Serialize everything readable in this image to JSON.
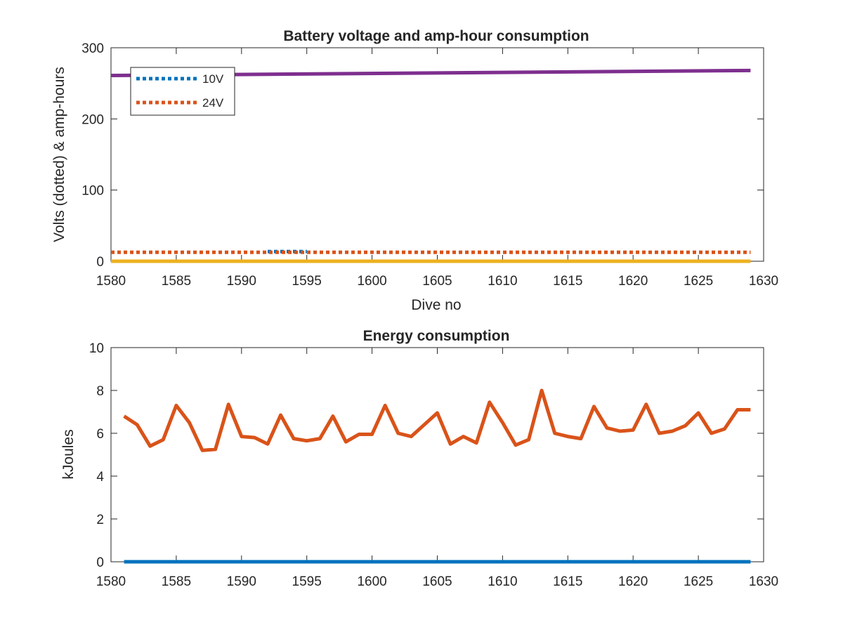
{
  "chart_data": [
    {
      "type": "line",
      "title": "Battery voltage and amp-hour consumption",
      "xlabel": "Dive no",
      "ylabel": "Volts (dotted) & amp-hours",
      "xlim": [
        1580,
        1630
      ],
      "ylim": [
        0,
        300
      ],
      "xticks": [
        1580,
        1585,
        1590,
        1595,
        1600,
        1605,
        1610,
        1615,
        1620,
        1625,
        1630
      ],
      "yticks": [
        0,
        100,
        200,
        300
      ],
      "grid": false,
      "legend_position": "top-left",
      "series": [
        {
          "name": "10V",
          "style": "dotted",
          "color": "#0072BD",
          "x": [
            1592,
            1595
          ],
          "y": [
            13.5,
            13.5
          ]
        },
        {
          "name": "24V",
          "style": "dotted",
          "color": "#D95319",
          "x": [
            1580,
            1629
          ],
          "y": [
            12.5,
            12.5
          ]
        },
        {
          "style": "solid",
          "color": "#7E2F8E",
          "x": [
            1580,
            1629
          ],
          "y": [
            261,
            268
          ]
        },
        {
          "style": "solid",
          "color": "#EDB120",
          "x": [
            1580,
            1629
          ],
          "y": [
            0,
            0
          ]
        }
      ]
    },
    {
      "type": "line",
      "title": "Energy consumption",
      "xlabel": "",
      "ylabel": "kJoules",
      "xlim": [
        1580,
        1630
      ],
      "ylim": [
        0,
        10
      ],
      "xticks": [
        1580,
        1585,
        1590,
        1595,
        1600,
        1605,
        1610,
        1615,
        1620,
        1625,
        1630
      ],
      "yticks": [
        0,
        2,
        4,
        6,
        8,
        10
      ],
      "grid": false,
      "series": [
        {
          "style": "solid",
          "color": "#0072BD",
          "x": [
            1581,
            1629
          ],
          "y": [
            0,
            0
          ]
        },
        {
          "style": "solid",
          "color": "#D95319",
          "x": [
            1581,
            1582,
            1583,
            1584,
            1585,
            1586,
            1587,
            1588,
            1589,
            1590,
            1591,
            1592,
            1593,
            1594,
            1595,
            1596,
            1597,
            1598,
            1599,
            1600,
            1601,
            1602,
            1603,
            1604,
            1605,
            1606,
            1607,
            1608,
            1609,
            1610,
            1611,
            1612,
            1613,
            1614,
            1615,
            1616,
            1617,
            1618,
            1619,
            1620,
            1621,
            1622,
            1623,
            1624,
            1625,
            1626,
            1627,
            1628,
            1629
          ],
          "y": [
            6.8,
            6.4,
            5.4,
            5.7,
            7.3,
            6.5,
            5.2,
            5.25,
            7.35,
            5.85,
            5.8,
            5.5,
            6.85,
            5.75,
            5.65,
            5.75,
            6.8,
            5.6,
            5.95,
            5.95,
            7.3,
            6.0,
            5.85,
            6.4,
            6.95,
            5.5,
            5.85,
            5.55,
            7.45,
            6.5,
            5.45,
            5.7,
            8.0,
            6.0,
            5.85,
            5.75,
            7.25,
            6.25,
            6.1,
            6.15,
            7.35,
            6.0,
            6.1,
            6.35,
            6.95,
            6.0,
            6.2,
            7.1,
            7.1
          ]
        }
      ]
    }
  ]
}
